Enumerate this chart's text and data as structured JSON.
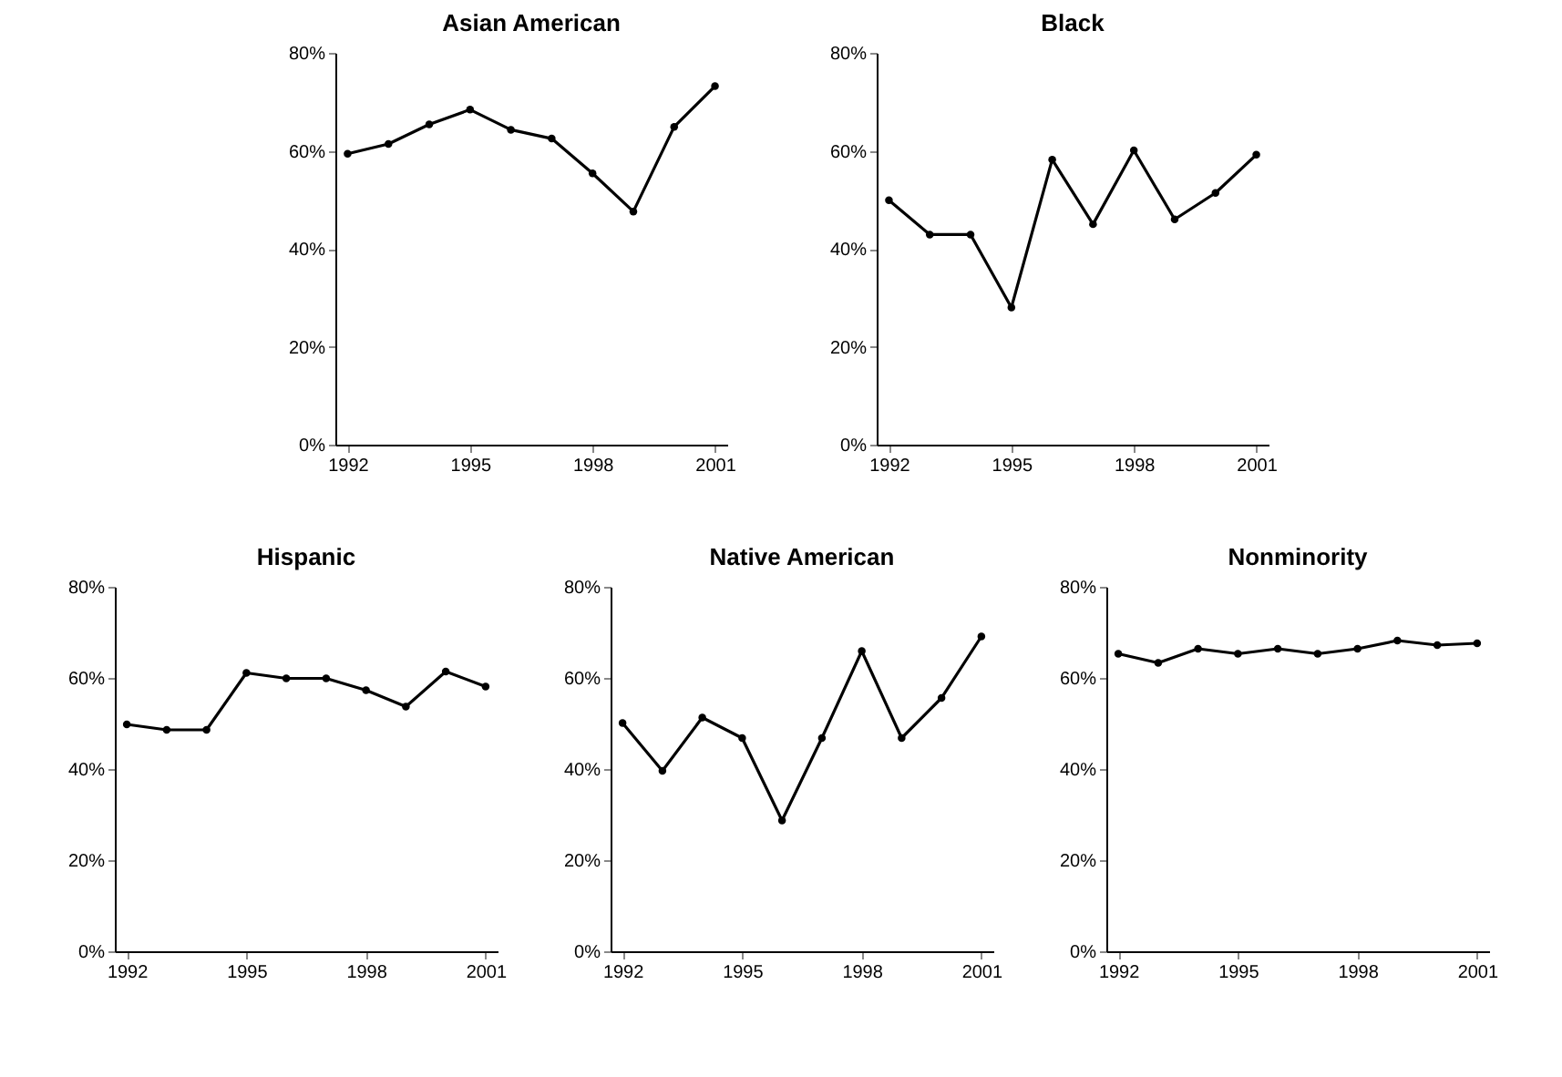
{
  "chart_data": [
    {
      "type": "line",
      "title": "Asian American",
      "x": [
        1992,
        1993,
        1994,
        1995,
        1996,
        1997,
        1998,
        1999,
        2000,
        2001
      ],
      "values": [
        59.4,
        61.4,
        65.4,
        68.4,
        64.3,
        62.5,
        55.4,
        47.6,
        64.9,
        73.2
      ],
      "color": "#000000",
      "xlim": [
        1991.7,
        2001.3
      ],
      "xticks": [
        1992,
        1995,
        1998,
        2001
      ],
      "ylim": [
        0,
        80
      ],
      "yticks": [
        {
          "value": 0,
          "label": "0%"
        },
        {
          "value": 20,
          "label": "20%"
        },
        {
          "value": 40,
          "label": "40%"
        },
        {
          "value": 60,
          "label": "60%"
        },
        {
          "value": 80,
          "label": "80%"
        }
      ],
      "marker": "circle",
      "line_style": "solid",
      "grid": false
    },
    {
      "type": "line",
      "title": "Black",
      "x": [
        1992,
        1993,
        1994,
        1995,
        1996,
        1997,
        1998,
        1999,
        2000,
        2001
      ],
      "values": [
        49.9,
        42.9,
        42.9,
        28,
        58.2,
        45,
        60.1,
        46,
        51.4,
        59.2
      ],
      "color": "#000000",
      "xlim": [
        1991.7,
        2001.3
      ],
      "xticks": [
        1992,
        1995,
        1998,
        2001
      ],
      "ylim": [
        0,
        80
      ],
      "yticks": [
        {
          "value": 0,
          "label": "0%"
        },
        {
          "value": 20,
          "label": "20%"
        },
        {
          "value": 40,
          "label": "40%"
        },
        {
          "value": 60,
          "label": "60%"
        },
        {
          "value": 80,
          "label": "80%"
        }
      ],
      "marker": "circle",
      "line_style": "solid",
      "grid": false
    },
    {
      "type": "line",
      "title": "Hispanic",
      "x": [
        1992,
        1993,
        1994,
        1995,
        1996,
        1997,
        1998,
        1999,
        2000,
        2001
      ],
      "values": [
        49.8,
        48.6,
        48.6,
        61.1,
        59.9,
        59.9,
        57.3,
        53.7,
        61.4,
        58.1
      ],
      "color": "#000000",
      "xlim": [
        1991.7,
        2001.3
      ],
      "xticks": [
        1992,
        1995,
        1998,
        2001
      ],
      "ylim": [
        0,
        80
      ],
      "yticks": [
        {
          "value": 0,
          "label": "0%"
        },
        {
          "value": 20,
          "label": "20%"
        },
        {
          "value": 40,
          "label": "40%"
        },
        {
          "value": 60,
          "label": "60%"
        },
        {
          "value": 80,
          "label": "80%"
        }
      ],
      "marker": "circle",
      "line_style": "solid",
      "grid": false
    },
    {
      "type": "line",
      "title": "Native American",
      "x": [
        1992,
        1993,
        1994,
        1995,
        1996,
        1997,
        1998,
        1999,
        2000,
        2001
      ],
      "values": [
        50.1,
        39.6,
        51.3,
        46.8,
        28.7,
        46.8,
        65.9,
        46.8,
        55.6,
        69.1
      ],
      "color": "#000000",
      "xlim": [
        1991.7,
        2001.3
      ],
      "xticks": [
        1992,
        1995,
        1998,
        2001
      ],
      "ylim": [
        0,
        80
      ],
      "yticks": [
        {
          "value": 0,
          "label": "0%"
        },
        {
          "value": 20,
          "label": "20%"
        },
        {
          "value": 40,
          "label": "40%"
        },
        {
          "value": 60,
          "label": "60%"
        },
        {
          "value": 80,
          "label": "80%"
        }
      ],
      "marker": "circle",
      "line_style": "solid",
      "grid": false
    },
    {
      "type": "line",
      "title": "Nonminority",
      "x": [
        1992,
        1993,
        1994,
        1995,
        1996,
        1997,
        1998,
        1999,
        2000,
        2001
      ],
      "values": [
        65.3,
        63.3,
        66.4,
        65.3,
        66.4,
        65.3,
        66.4,
        68.2,
        67.2,
        67.6
      ],
      "color": "#000000",
      "xlim": [
        1991.7,
        2001.3
      ],
      "xticks": [
        1992,
        1995,
        1998,
        2001
      ],
      "ylim": [
        0,
        80
      ],
      "yticks": [
        {
          "value": 0,
          "label": "0%"
        },
        {
          "value": 20,
          "label": "20%"
        },
        {
          "value": 40,
          "label": "40%"
        },
        {
          "value": 60,
          "label": "60%"
        },
        {
          "value": 80,
          "label": "80%"
        }
      ],
      "marker": "circle",
      "line_style": "solid",
      "grid": false
    }
  ]
}
